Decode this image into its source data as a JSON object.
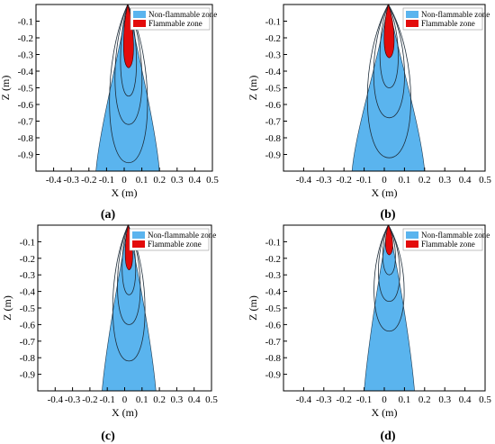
{
  "chart_data": [
    {
      "type": "area",
      "panel": "(a)",
      "xlabel": "X (m)",
      "ylabel": "Z (m)",
      "xlim": [
        -0.5,
        0.5
      ],
      "ylim": [
        -1.0,
        0.0
      ],
      "xticks": [
        -0.4,
        -0.3,
        -0.2,
        -0.1,
        0.0,
        0.1,
        0.2,
        0.3,
        0.4,
        0.5
      ],
      "yticks": [
        -0.1,
        -0.2,
        -0.3,
        -0.4,
        -0.5,
        -0.6,
        -0.7,
        -0.8,
        -0.9
      ],
      "legend": [
        "Non-flammable zone",
        "Flammable zone"
      ],
      "legend_position": "top-right",
      "zones": [
        {
          "name": "Non-flammable zone",
          "color": "#5ab4ee",
          "apex": [
            0.02,
            0.0
          ],
          "bottom_x": [
            -0.16,
            0.2
          ]
        },
        {
          "name": "Flammable zone",
          "color": "#e30b0b",
          "apex": [
            0.02,
            0.0
          ],
          "bottom_z": -0.38,
          "half_width": 0.04
        }
      ],
      "contour_depths": [
        -0.55,
        -0.72,
        -0.95
      ]
    },
    {
      "type": "area",
      "panel": "(b)",
      "xlabel": "X (m)",
      "ylabel": "Z (m)",
      "xlim": [
        -0.5,
        0.5
      ],
      "ylim": [
        -1.0,
        0.0
      ],
      "xticks": [
        -0.4,
        -0.3,
        -0.2,
        -0.1,
        0.0,
        0.1,
        0.2,
        0.3,
        0.4,
        0.5
      ],
      "yticks": [
        -0.1,
        -0.2,
        -0.3,
        -0.4,
        -0.5,
        -0.6,
        -0.7,
        -0.8,
        -0.9
      ],
      "legend": [
        "Non-flammable zone",
        "Flammable zone"
      ],
      "legend_position": "top-right",
      "zones": [
        {
          "name": "Non-flammable zone",
          "color": "#5ab4ee",
          "apex": [
            0.02,
            0.0
          ],
          "bottom_x": [
            -0.16,
            0.2
          ]
        },
        {
          "name": "Flammable zone",
          "color": "#e30b0b",
          "apex": [
            0.02,
            0.0
          ],
          "bottom_z": -0.32,
          "half_width": 0.035
        }
      ],
      "contour_depths": [
        -0.5,
        -0.68,
        -0.92
      ]
    },
    {
      "type": "area",
      "panel": "(c)",
      "xlabel": "X (m)",
      "ylabel": "Z (m)",
      "xlim": [
        -0.5,
        0.5
      ],
      "ylim": [
        -1.0,
        0.0
      ],
      "xticks": [
        -0.4,
        -0.3,
        -0.2,
        -0.1,
        0.0,
        0.1,
        0.2,
        0.3,
        0.4,
        0.5
      ],
      "yticks": [
        -0.1,
        -0.2,
        -0.3,
        -0.4,
        -0.5,
        -0.6,
        -0.7,
        -0.8,
        -0.9
      ],
      "legend": [
        "Non-flammable zone",
        "Flammable zone"
      ],
      "legend_position": "top-right",
      "zones": [
        {
          "name": "Non-flammable zone",
          "color": "#5ab4ee",
          "apex": [
            0.02,
            0.0
          ],
          "bottom_x": [
            -0.13,
            0.18
          ]
        },
        {
          "name": "Flammable zone",
          "color": "#e30b0b",
          "apex": [
            0.02,
            0.0
          ],
          "bottom_z": -0.27,
          "half_width": 0.03
        }
      ],
      "contour_depths": [
        -0.42,
        -0.6,
        -0.82
      ]
    },
    {
      "type": "area",
      "panel": "(d)",
      "xlabel": "X (m)",
      "ylabel": "Z (m)",
      "xlim": [
        -0.5,
        0.5
      ],
      "ylim": [
        -1.0,
        0.0
      ],
      "xticks": [
        -0.4,
        -0.3,
        -0.2,
        -0.1,
        0.0,
        0.1,
        0.2,
        0.3,
        0.4,
        0.5
      ],
      "yticks": [
        -0.1,
        -0.2,
        -0.3,
        -0.4,
        -0.5,
        -0.6,
        -0.7,
        -0.8,
        -0.9
      ],
      "legend": [
        "Non-flammable zone",
        "Flammable zone"
      ],
      "legend_position": "top-right",
      "zones": [
        {
          "name": "Non-flammable zone",
          "color": "#5ab4ee",
          "apex": [
            0.02,
            0.0
          ],
          "bottom_x": [
            -0.1,
            0.15
          ]
        },
        {
          "name": "Flammable zone",
          "color": "#e30b0b",
          "apex": [
            0.02,
            0.0
          ],
          "bottom_z": -0.18,
          "half_width": 0.025
        }
      ],
      "contour_depths": [
        -0.3,
        -0.46,
        -0.64
      ]
    }
  ],
  "captions": [
    "(a)",
    "(b)",
    "(c)",
    "(d)"
  ]
}
